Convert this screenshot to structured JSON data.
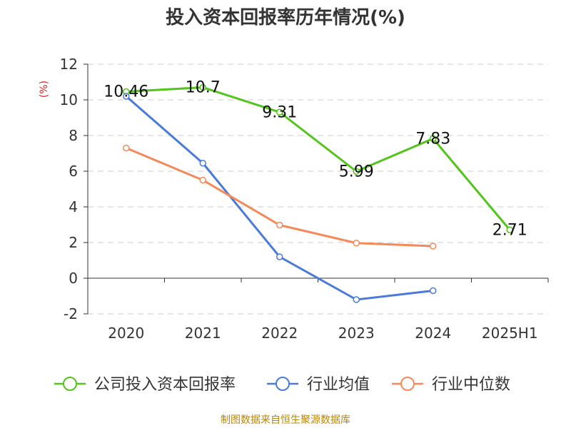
{
  "chart_data": {
    "type": "line",
    "title": "投入资本回报率历年情况(%)",
    "ylabel": "(%)",
    "xlabel": "",
    "categories": [
      "2020",
      "2021",
      "2022",
      "2023",
      "2024",
      "2025H1"
    ],
    "ylim": [
      -2,
      12
    ],
    "yticks": [
      -2,
      0,
      2,
      4,
      6,
      8,
      10,
      12
    ],
    "grid": true,
    "legend_position": "bottom",
    "series": [
      {
        "name": "公司投入资本回报率",
        "color": "#52c41a",
        "values": [
          10.46,
          10.7,
          9.31,
          5.99,
          7.83,
          2.71
        ],
        "labels": [
          "10.46",
          "10.7",
          "9.31",
          "5.99",
          "7.83",
          "2.71"
        ]
      },
      {
        "name": "行业均值",
        "color": "#4a7bd9",
        "values": [
          10.2,
          6.45,
          1.2,
          -1.2,
          -0.7,
          null
        ]
      },
      {
        "name": "行业中位数",
        "color": "#f4895a",
        "values": [
          7.3,
          5.5,
          2.98,
          1.97,
          1.8,
          null
        ]
      }
    ],
    "source": "制图数据来自恒生聚源数据库"
  }
}
